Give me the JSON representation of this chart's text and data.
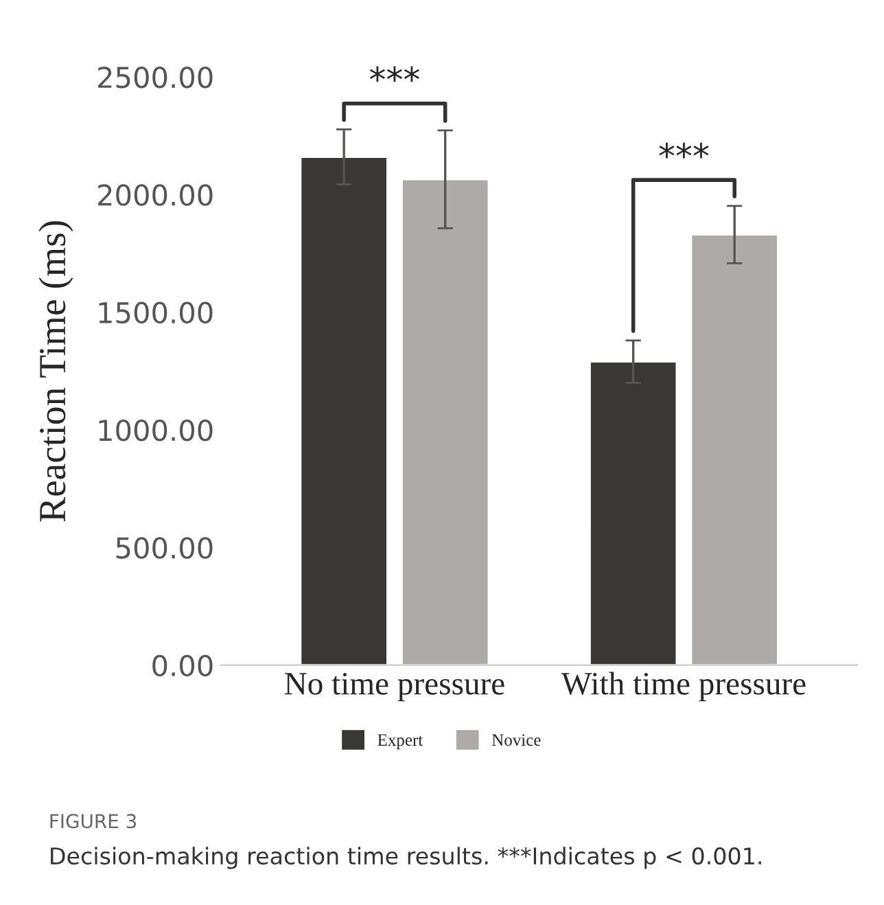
{
  "chart_data": {
    "type": "bar",
    "ylabel": "Reaction Time (ms)",
    "categories": [
      "No time pressure",
      "With time pressure"
    ],
    "series": [
      {
        "name": "Expert",
        "color": "#3a3836",
        "values": [
          2160,
          1290
        ],
        "errors": [
          117,
          90
        ]
      },
      {
        "name": "Novice",
        "color": "#aeaaa9",
        "values": [
          2065,
          1830
        ],
        "errors": [
          208,
          122
        ]
      }
    ],
    "ylim": [
      0,
      2500
    ],
    "yticks": [
      {
        "value": 0,
        "label": "0.00"
      },
      {
        "value": 500,
        "label": "500.00"
      },
      {
        "value": 1000,
        "label": "1000.00"
      },
      {
        "value": 1500,
        "label": "1500.00"
      },
      {
        "value": 2000,
        "label": "2000.00"
      },
      {
        "value": 2500,
        "label": "2500.00"
      }
    ],
    "grid": false,
    "legend": "bottom",
    "annotations": [
      "***",
      "***",
      "FIGURE 3",
      "Decision-making reaction time results. ***Indicates p < 0.001."
    ]
  }
}
